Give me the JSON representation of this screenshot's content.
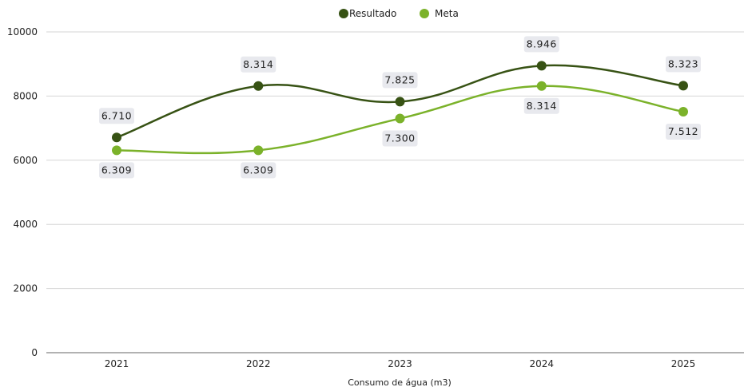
{
  "chart_data": {
    "type": "line",
    "title": "",
    "xlabel": "Consumo de água (m3)",
    "ylabel": "",
    "categories": [
      "2021",
      "2022",
      "2023",
      "2024",
      "2025"
    ],
    "ylim": [
      0,
      10000
    ],
    "yticks": [
      "0",
      "2000",
      "4000",
      "6000",
      "8000",
      "10000"
    ],
    "grid": true,
    "legend_position": "top-center",
    "smooth": true,
    "series": [
      {
        "name": "Resultado",
        "color": "#375214",
        "values": [
          6710,
          8314,
          7825,
          8946,
          8323
        ],
        "labels": [
          "6.710",
          "8.314",
          "7.825",
          "8.946",
          "8.323"
        ],
        "label_side": "above"
      },
      {
        "name": "Meta",
        "color": "#7bb22a",
        "values": [
          6309,
          6309,
          7300,
          8314,
          7512
        ],
        "labels": [
          "6.309",
          "6.309",
          "7.300",
          "8.314",
          "7.512"
        ],
        "label_side": "below"
      }
    ]
  }
}
